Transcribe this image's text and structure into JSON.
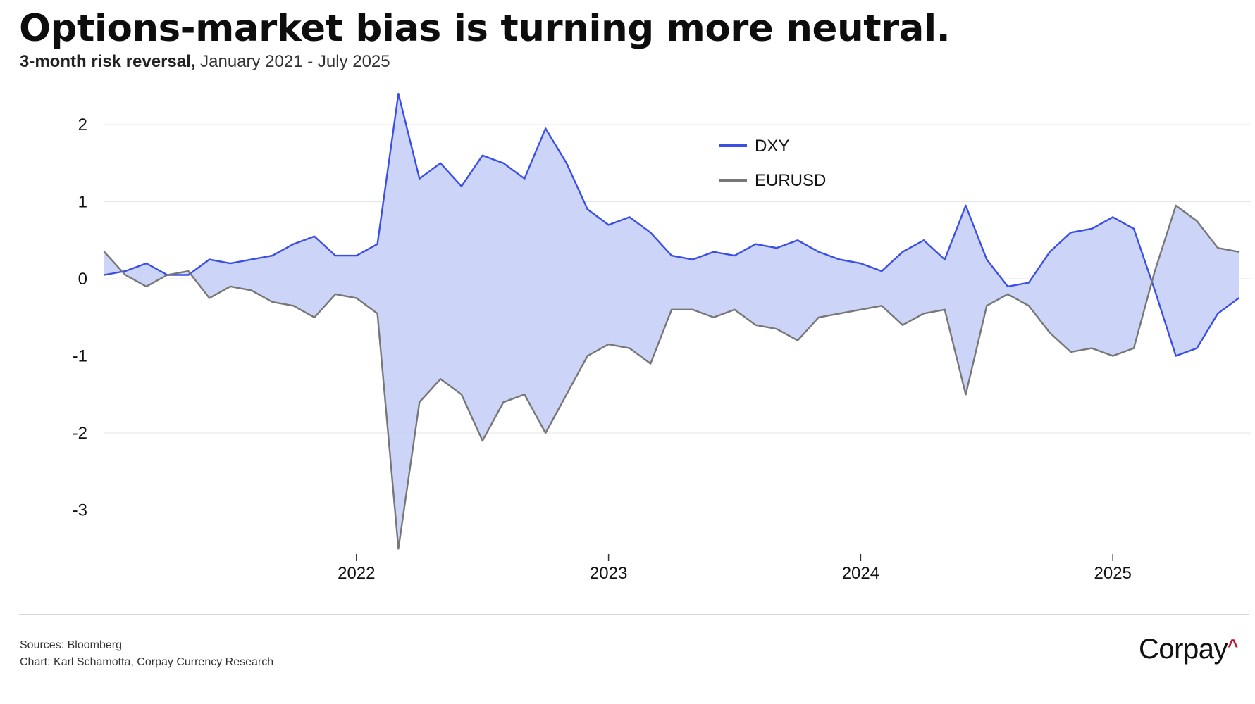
{
  "header": {
    "title": "Options-market bias is turning more neutral.",
    "subtitle_bold": "3-month risk reversal,",
    "subtitle_rest": " January 2021 - July 2025"
  },
  "footer": {
    "sources": "Sources: Bloomberg",
    "credit": "Chart: Karl Schamotta, Corpay Currency Research",
    "logo_text": "Corpay",
    "logo_mark": "^"
  },
  "colors": {
    "dxy": "#3b4fe4",
    "eurusd": "#777777",
    "fill": "#c9d3f7",
    "grid": "#e6e6e6",
    "logo_accent": "#c8102e"
  },
  "chart_data": {
    "type": "line",
    "title": "Options-market bias is turning more neutral.",
    "subtitle": "3-month risk reversal, January 2021 - July 2025",
    "xlabel": "",
    "ylabel": "",
    "x_range": [
      "2021-01",
      "2025-07"
    ],
    "ylim": [
      -3.6,
      2.45
    ],
    "y_ticks": [
      2,
      1,
      0,
      -1,
      -2,
      -3
    ],
    "x_ticks": [
      "2022",
      "2023",
      "2024",
      "2025"
    ],
    "grid": true,
    "legend_position": "top-center",
    "shaded_area_between_series": true,
    "series": [
      {
        "name": "DXY",
        "color": "#3b4fe4",
        "points": [
          [
            "2021-01",
            0.05
          ],
          [
            "2021-02",
            0.1
          ],
          [
            "2021-03",
            0.2
          ],
          [
            "2021-04",
            0.05
          ],
          [
            "2021-05",
            0.05
          ],
          [
            "2021-06",
            0.25
          ],
          [
            "2021-07",
            0.2
          ],
          [
            "2021-08",
            0.25
          ],
          [
            "2021-09",
            0.3
          ],
          [
            "2021-10",
            0.45
          ],
          [
            "2021-11",
            0.55
          ],
          [
            "2021-12",
            0.3
          ],
          [
            "2022-01",
            0.3
          ],
          [
            "2022-02",
            0.45
          ],
          [
            "2022-03",
            2.4
          ],
          [
            "2022-04",
            1.3
          ],
          [
            "2022-05",
            1.5
          ],
          [
            "2022-06",
            1.2
          ],
          [
            "2022-07",
            1.6
          ],
          [
            "2022-08",
            1.5
          ],
          [
            "2022-09",
            1.3
          ],
          [
            "2022-10",
            1.95
          ],
          [
            "2022-11",
            1.5
          ],
          [
            "2022-12",
            0.9
          ],
          [
            "2023-01",
            0.7
          ],
          [
            "2023-02",
            0.8
          ],
          [
            "2023-03",
            0.6
          ],
          [
            "2023-04",
            0.3
          ],
          [
            "2023-05",
            0.25
          ],
          [
            "2023-06",
            0.35
          ],
          [
            "2023-07",
            0.3
          ],
          [
            "2023-08",
            0.45
          ],
          [
            "2023-09",
            0.4
          ],
          [
            "2023-10",
            0.5
          ],
          [
            "2023-11",
            0.35
          ],
          [
            "2023-12",
            0.25
          ],
          [
            "2024-01",
            0.2
          ],
          [
            "2024-02",
            0.1
          ],
          [
            "2024-03",
            0.35
          ],
          [
            "2024-04",
            0.5
          ],
          [
            "2024-05",
            0.25
          ],
          [
            "2024-06",
            0.95
          ],
          [
            "2024-07",
            0.25
          ],
          [
            "2024-08",
            -0.1
          ],
          [
            "2024-09",
            -0.05
          ],
          [
            "2024-10",
            0.35
          ],
          [
            "2024-11",
            0.6
          ],
          [
            "2024-12",
            0.65
          ],
          [
            "2025-01",
            0.8
          ],
          [
            "2025-02",
            0.65
          ],
          [
            "2025-03",
            -0.15
          ],
          [
            "2025-04",
            -1.0
          ],
          [
            "2025-05",
            -0.9
          ],
          [
            "2025-06",
            -0.45
          ],
          [
            "2025-07",
            -0.25
          ]
        ]
      },
      {
        "name": "EURUSD",
        "color": "#777777",
        "points": [
          [
            "2021-01",
            0.35
          ],
          [
            "2021-02",
            0.05
          ],
          [
            "2021-03",
            -0.1
          ],
          [
            "2021-04",
            0.05
          ],
          [
            "2021-05",
            0.1
          ],
          [
            "2021-06",
            -0.25
          ],
          [
            "2021-07",
            -0.1
          ],
          [
            "2021-08",
            -0.15
          ],
          [
            "2021-09",
            -0.3
          ],
          [
            "2021-10",
            -0.35
          ],
          [
            "2021-11",
            -0.5
          ],
          [
            "2021-12",
            -0.2
          ],
          [
            "2022-01",
            -0.25
          ],
          [
            "2022-02",
            -0.45
          ],
          [
            "2022-03",
            -3.5
          ],
          [
            "2022-04",
            -1.6
          ],
          [
            "2022-05",
            -1.3
          ],
          [
            "2022-06",
            -1.5
          ],
          [
            "2022-07",
            -2.1
          ],
          [
            "2022-08",
            -1.6
          ],
          [
            "2022-09",
            -1.5
          ],
          [
            "2022-10",
            -2.0
          ],
          [
            "2022-11",
            -1.5
          ],
          [
            "2022-12",
            -1.0
          ],
          [
            "2023-01",
            -0.85
          ],
          [
            "2023-02",
            -0.9
          ],
          [
            "2023-03",
            -1.1
          ],
          [
            "2023-04",
            -0.4
          ],
          [
            "2023-05",
            -0.4
          ],
          [
            "2023-06",
            -0.5
          ],
          [
            "2023-07",
            -0.4
          ],
          [
            "2023-08",
            -0.6
          ],
          [
            "2023-09",
            -0.65
          ],
          [
            "2023-10",
            -0.8
          ],
          [
            "2023-11",
            -0.5
          ],
          [
            "2023-12",
            -0.45
          ],
          [
            "2024-01",
            -0.4
          ],
          [
            "2024-02",
            -0.35
          ],
          [
            "2024-03",
            -0.6
          ],
          [
            "2024-04",
            -0.45
          ],
          [
            "2024-05",
            -0.4
          ],
          [
            "2024-06",
            -1.5
          ],
          [
            "2024-07",
            -0.35
          ],
          [
            "2024-08",
            -0.2
          ],
          [
            "2024-09",
            -0.35
          ],
          [
            "2024-10",
            -0.7
          ],
          [
            "2024-11",
            -0.95
          ],
          [
            "2024-12",
            -0.9
          ],
          [
            "2025-01",
            -1.0
          ],
          [
            "2025-02",
            -0.9
          ],
          [
            "2025-03",
            0.1
          ],
          [
            "2025-04",
            0.95
          ],
          [
            "2025-05",
            0.75
          ],
          [
            "2025-06",
            0.4
          ],
          [
            "2025-07",
            0.35
          ]
        ]
      }
    ]
  }
}
